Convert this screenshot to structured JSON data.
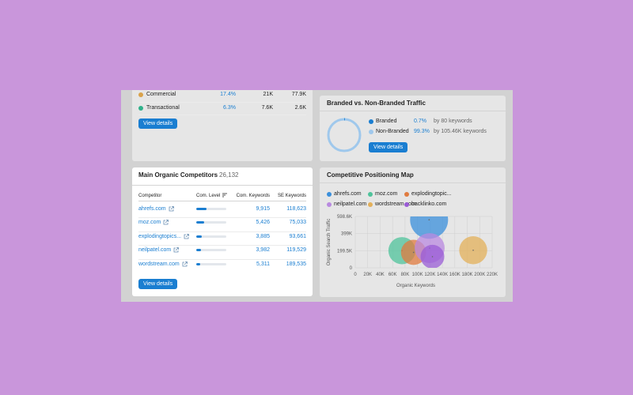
{
  "intent": {
    "rows": [
      {
        "label": "Commercial",
        "pct": "17.4%",
        "keywords": "21K",
        "traffic": "77.9K",
        "color": "#d9a24a"
      },
      {
        "label": "Transactional",
        "pct": "6.3%",
        "keywords": "7.6K",
        "traffic": "2.6K",
        "color": "#2fb18a"
      }
    ],
    "view_details": "View details"
  },
  "branded": {
    "title": "Branded vs. Non-Branded Traffic",
    "items": [
      {
        "label": "Branded",
        "pct": "0.7%",
        "detail": "by 80 keywords",
        "color": "#1a7ed1"
      },
      {
        "label": "Non-Branded",
        "pct": "99.3%",
        "detail": "by 105.46K keywords",
        "color": "#9fc8ec"
      }
    ],
    "branded_share": 0.007,
    "view_details": "View details"
  },
  "competitors": {
    "title": "Main Organic Competitors",
    "count": "26,132",
    "headers": {
      "competitor": "Competitor",
      "level": "Com. Level",
      "keywords": "Com. Keywords",
      "se_keywords": "SE Keywords"
    },
    "rows": [
      {
        "domain": "ahrefs.com",
        "level": 0.35,
        "keywords": "9,915",
        "se": "118,623"
      },
      {
        "domain": "moz.com",
        "level": 0.25,
        "keywords": "5,426",
        "se": "75,033"
      },
      {
        "domain": "explodingtopics...",
        "level": 0.18,
        "keywords": "3,885",
        "se": "93,661"
      },
      {
        "domain": "neilpatel.com",
        "level": 0.16,
        "keywords": "3,982",
        "se": "119,529"
      },
      {
        "domain": "wordstream.com",
        "level": 0.14,
        "keywords": "5,311",
        "se": "189,535"
      }
    ],
    "view_details": "View details"
  },
  "positioning": {
    "title": "Competitive Positioning Map",
    "legend": [
      {
        "name": "ahrefs.com",
        "color": "#3a8fdb"
      },
      {
        "name": "moz.com",
        "color": "#4fc39b"
      },
      {
        "name": "explodingtopic...",
        "color": "#e07b3f"
      },
      {
        "name": "neilpatel.com",
        "color": "#b98ae0"
      },
      {
        "name": "wordstream.com",
        "color": "#e3b05a"
      },
      {
        "name": "backlinko.com",
        "color": "#9a5cd6"
      }
    ]
  },
  "chart_data": {
    "type": "scatter",
    "title": "Competitive Positioning Map",
    "xlabel": "Organic Keywords",
    "ylabel": "Organic Search Traffic",
    "xlim": [
      0,
      220000
    ],
    "ylim": [
      0,
      598600
    ],
    "x_ticks": [
      "0",
      "20K",
      "40K",
      "60K",
      "80K",
      "100K",
      "120K",
      "140K",
      "160K",
      "180K",
      "200K",
      "220K"
    ],
    "y_ticks": [
      "0",
      "199.5K",
      "399K",
      "598.6K"
    ],
    "series": [
      {
        "name": "ahrefs.com",
        "color": "#3a8fdb",
        "x": 118623,
        "y": 560000,
        "size": 1.0
      },
      {
        "name": "moz.com",
        "color": "#4fc39b",
        "x": 75033,
        "y": 200000,
        "size": 0.62
      },
      {
        "name": "explodingtopic...",
        "color": "#e07b3f",
        "x": 93661,
        "y": 180000,
        "size": 0.55
      },
      {
        "name": "neilpatel.com",
        "color": "#b98ae0",
        "x": 119529,
        "y": 230000,
        "size": 0.72
      },
      {
        "name": "wordstream.com",
        "color": "#e3b05a",
        "x": 189535,
        "y": 205000,
        "size": 0.65
      },
      {
        "name": "backlinko.com",
        "color": "#9a5cd6",
        "x": 124000,
        "y": 130000,
        "size": 0.5
      }
    ]
  }
}
